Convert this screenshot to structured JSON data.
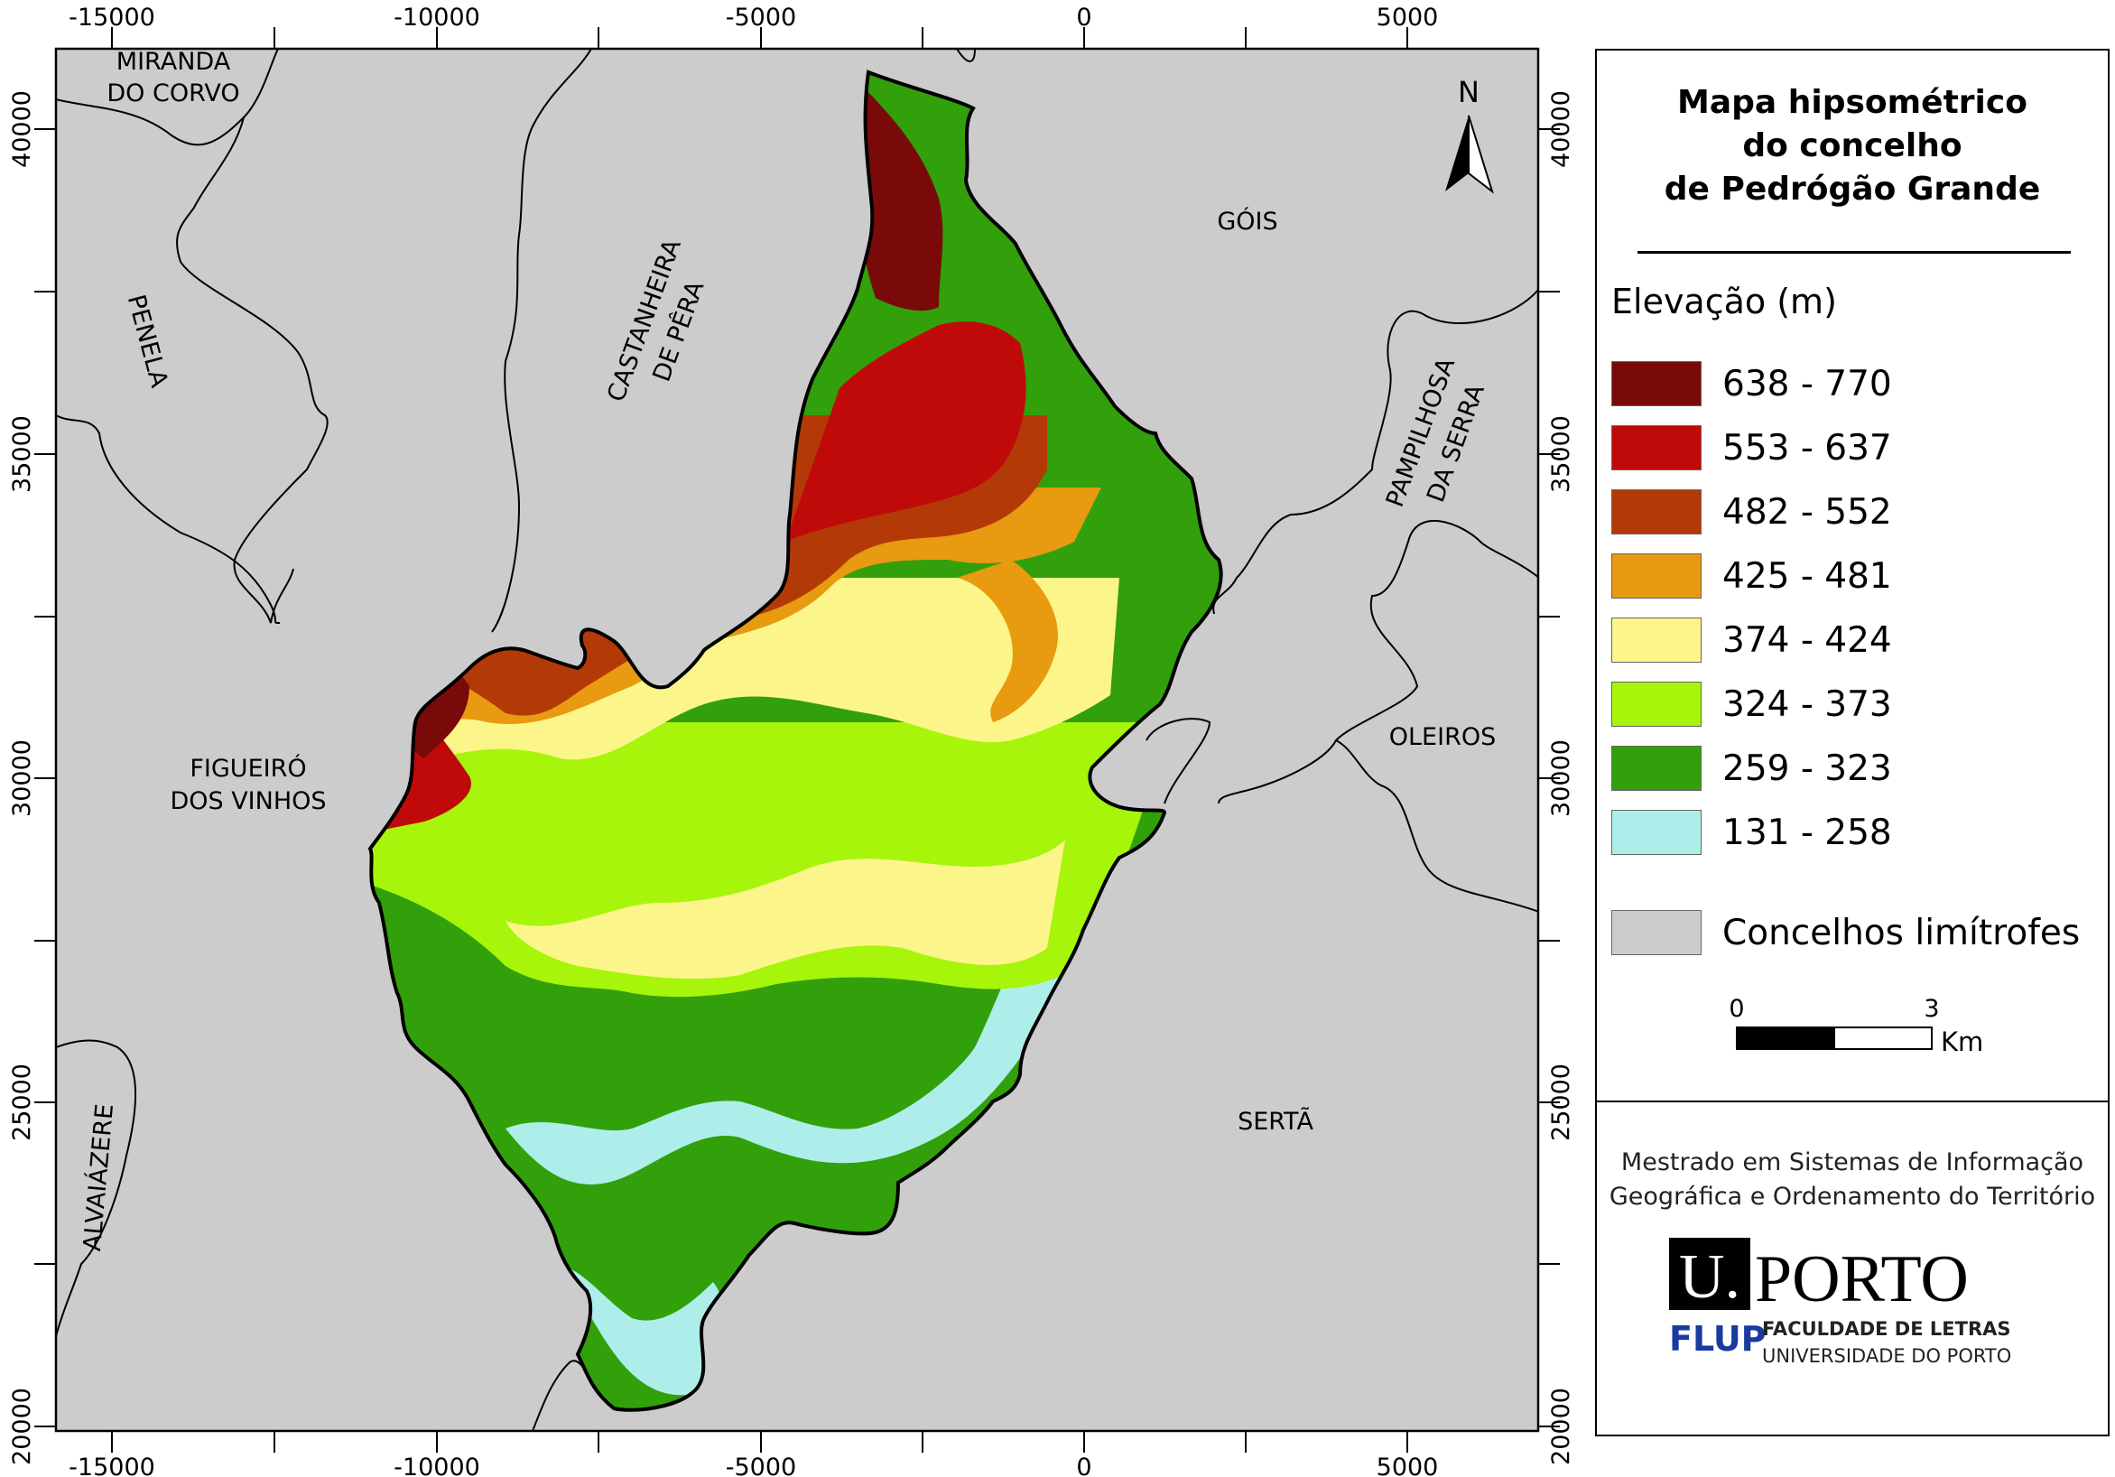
{
  "map": {
    "title_lines": [
      "Mapa hipsométrico",
      "do concelho",
      "de Pedrógão Grande"
    ],
    "north_label": "N",
    "x_ticks": [
      "-15000",
      "-10000",
      "-5000",
      "0",
      "5000"
    ],
    "y_ticks": [
      "40000",
      "35000",
      "30000",
      "25000",
      "20000"
    ],
    "neighbors": {
      "miranda_do_corvo": [
        "MIRANDA",
        "DO CORVO"
      ],
      "penela": "PENELA",
      "castanheira_de_pera": [
        "CASTANHEIRA",
        "DE PÊRA"
      ],
      "gois": "GÓIS",
      "pampilhosa_da_serra": [
        "PAMPILHOSA",
        "DA SERRA"
      ],
      "figueiro_dos_vinhos": [
        "FIGUEIRÓ",
        "DOS VINHOS"
      ],
      "oleiros": "OLEIROS",
      "serta": "SERTÃ",
      "alvaiazere": "ALVAIÁZERE"
    },
    "background_color": "#cccccc"
  },
  "legend": {
    "heading": "Elevação (m)",
    "classes": [
      {
        "label": "638 - 770",
        "color": "#7a0a0a"
      },
      {
        "label": "553 - 637",
        "color": "#c00a0a"
      },
      {
        "label": "482 - 552",
        "color": "#b33a06"
      },
      {
        "label": "425 - 481",
        "color": "#e89a10"
      },
      {
        "label": "374 - 424",
        "color": "#fbf58a"
      },
      {
        "label": "324 - 373",
        "color": "#a6f50a"
      },
      {
        "label": "259 - 323",
        "color": "#32a00a"
      },
      {
        "label": "131 - 258",
        "color": "#aeeeea"
      }
    ],
    "neighbor_label": "Concelhos limítrofes",
    "neighbor_color": "#cccccc",
    "scale": {
      "start": "0",
      "end": "3",
      "unit": "Km"
    }
  },
  "credits": {
    "line1": "Mestrado em Sistemas de Informação",
    "line2": "Geográfica e Ordenamento do Território",
    "logo_u": "U.",
    "logo_porto": "PORTO",
    "logo_flup": "FLUP",
    "logo_faculty": "FACULDADE DE LETRAS",
    "logo_university": "UNIVERSIDADE DO PORTO"
  }
}
